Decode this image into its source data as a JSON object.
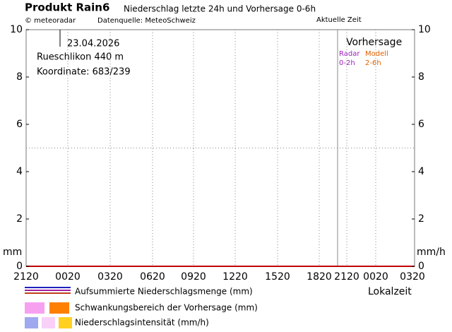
{
  "chart_data": {
    "type": "line",
    "title": "Produkt Rain6",
    "subtitle": "Niederschlag letzte 24h und Vorhersage 0-6h",
    "copyright": "© meteoradar",
    "source": "Datenquelle: MeteoSchweiz",
    "current_time_label": "Aktuelle Zeit",
    "date": "23.04.2026",
    "location": "Rueschlikon  440  m",
    "coordinates": "Koordinate:  683/239",
    "forecast_label": "Vorhersage",
    "radar_label": "Radar",
    "radar_range": "0-2h",
    "model_label": "Modell",
    "model_range": "2-6h",
    "y_label": "mm",
    "y2_label": "mm/h",
    "x_label": "Lokalzeit",
    "categories": [
      "2120",
      "0020",
      "0320",
      "0620",
      "0920",
      "1220",
      "1520",
      "1820",
      "2120",
      "0020",
      "0320"
    ],
    "ylim": [
      0,
      10
    ],
    "yticks": [
      0,
      2,
      4,
      6,
      8,
      10
    ],
    "y2lim": [
      0,
      10
    ],
    "y2ticks": [
      0,
      2,
      4,
      6,
      8,
      10
    ],
    "grid_y": [
      5
    ],
    "legend": [
      {
        "name": "Aufsummierte Niederschlagsmenge (mm)",
        "colors": [
          "#2020c0",
          "#a020a0",
          "#c04020"
        ]
      },
      {
        "name": "Schwankungsbereich der Vorhersage (mm)",
        "colors": [
          "#f8a0f0",
          "#ff8000"
        ]
      },
      {
        "name": "Niederschlagsintensität (mm/h)",
        "colors": [
          "#a0a8f0",
          "#f8d0f8",
          "#ffd020"
        ]
      }
    ]
  }
}
